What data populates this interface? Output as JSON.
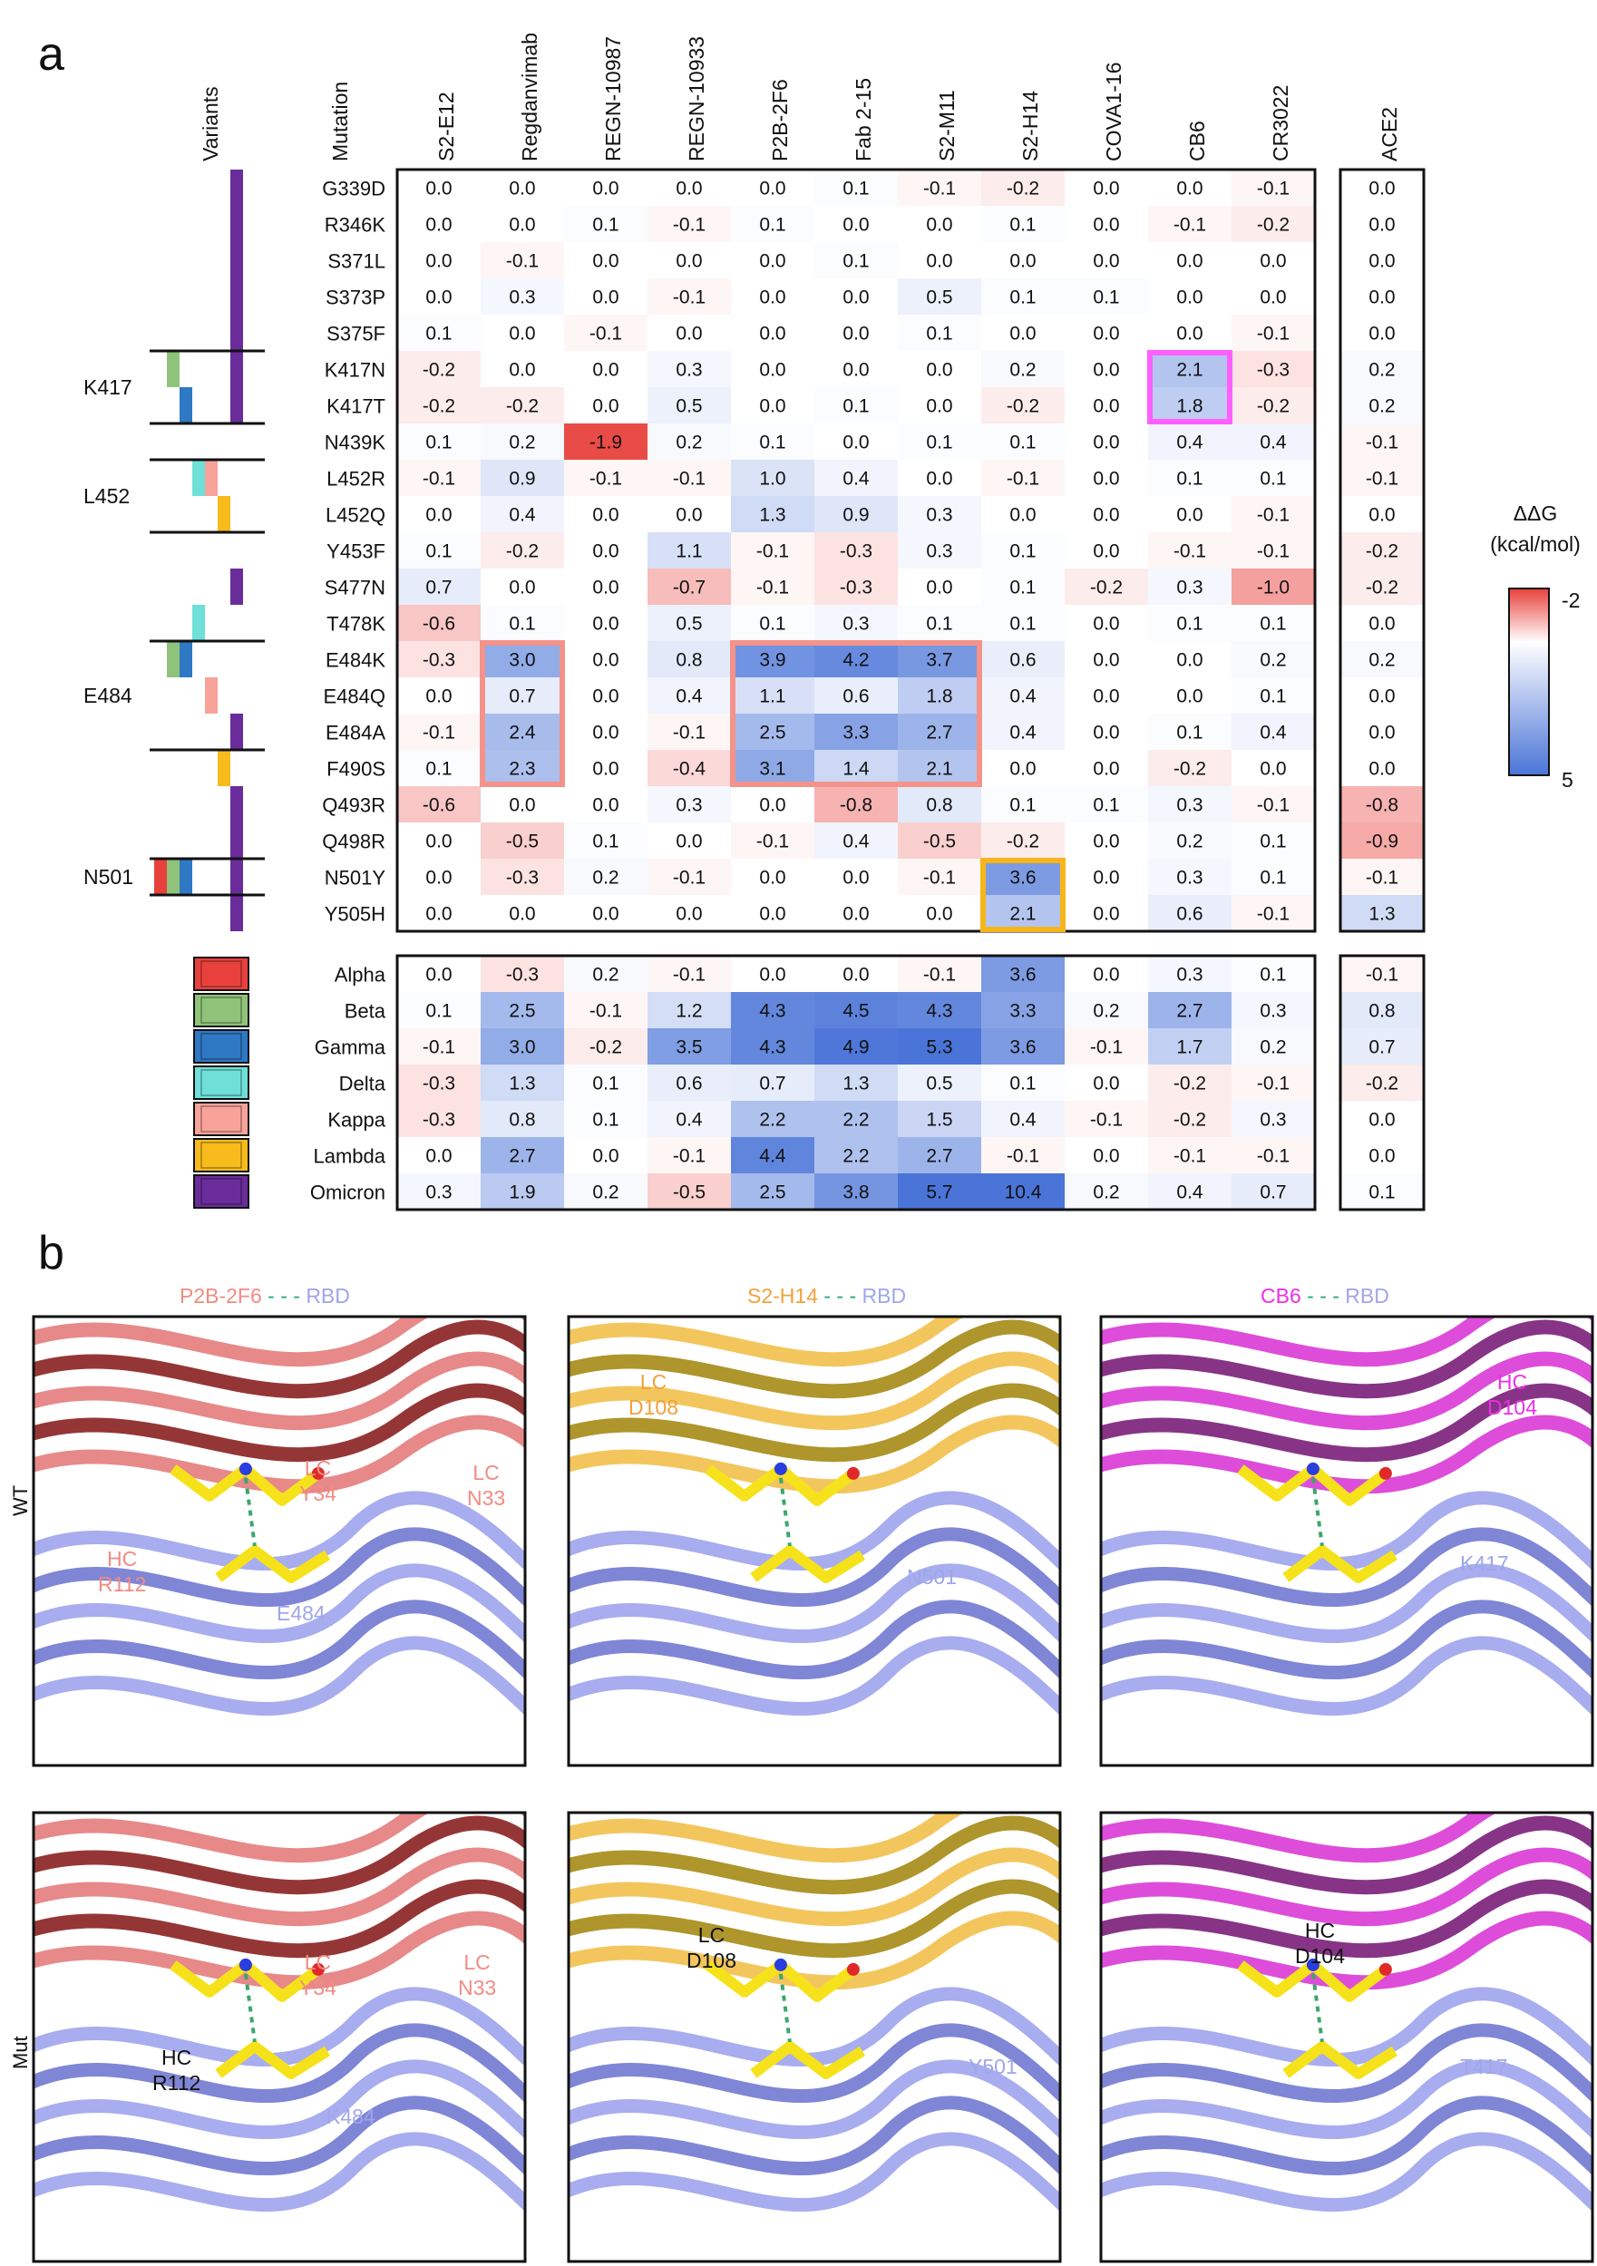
{
  "panel_a": {
    "letter": "a",
    "variants_header": "Variants",
    "mutation_header": "Mutation",
    "antibodies": [
      "S2-E12",
      "Regdanvimab",
      "REGN-10987",
      "REGN-10933",
      "P2B-2F6",
      "Fab 2-15",
      "S2-M11",
      "S2-H14",
      "COVA1-16",
      "CB6",
      "CR3022"
    ],
    "receptor": "ACE2",
    "mutations": [
      {
        "name": "G339D",
        "values": [
          0.0,
          0.0,
          0.0,
          0.0,
          0.0,
          0.1,
          -0.1,
          -0.2,
          0.0,
          0.0,
          -0.1
        ],
        "ace2": 0.0
      },
      {
        "name": "R346K",
        "values": [
          0.0,
          0.0,
          0.1,
          -0.1,
          0.1,
          0.0,
          0.0,
          0.1,
          0.0,
          -0.1,
          -0.2
        ],
        "ace2": 0.0
      },
      {
        "name": "S371L",
        "values": [
          0.0,
          -0.1,
          0.0,
          0.0,
          0.0,
          0.1,
          0.0,
          0.0,
          0.0,
          0.0,
          0.0
        ],
        "ace2": 0.0
      },
      {
        "name": "S373P",
        "values": [
          0.0,
          0.3,
          0.0,
          -0.1,
          0.0,
          0.0,
          0.5,
          0.1,
          0.1,
          0.0,
          0.0
        ],
        "ace2": 0.0
      },
      {
        "name": "S375F",
        "values": [
          0.1,
          0.0,
          -0.1,
          0.0,
          0.0,
          0.0,
          0.1,
          0.0,
          0.0,
          0.0,
          -0.1
        ],
        "ace2": 0.0
      },
      {
        "name": "K417N",
        "values": [
          -0.2,
          0.0,
          0.0,
          0.3,
          0.0,
          0.0,
          0.0,
          0.2,
          0.0,
          2.1,
          -0.3
        ],
        "ace2": 0.2
      },
      {
        "name": "K417T",
        "values": [
          -0.2,
          -0.2,
          0.0,
          0.5,
          0.0,
          0.1,
          0.0,
          -0.2,
          0.0,
          1.8,
          -0.2
        ],
        "ace2": 0.2
      },
      {
        "name": "N439K",
        "values": [
          0.1,
          0.2,
          -1.9,
          0.2,
          0.1,
          0.0,
          0.1,
          0.1,
          0.0,
          0.4,
          0.4
        ],
        "ace2": -0.1
      },
      {
        "name": "L452R",
        "values": [
          -0.1,
          0.9,
          -0.1,
          -0.1,
          1.0,
          0.4,
          0.0,
          -0.1,
          0.0,
          0.1,
          0.1
        ],
        "ace2": -0.1
      },
      {
        "name": "L452Q",
        "values": [
          0.0,
          0.4,
          0.0,
          0.0,
          1.3,
          0.9,
          0.3,
          0.0,
          0.0,
          0.0,
          -0.1
        ],
        "ace2": 0.0
      },
      {
        "name": "Y453F",
        "values": [
          0.1,
          -0.2,
          0.0,
          1.1,
          -0.1,
          -0.3,
          0.3,
          0.1,
          0.0,
          -0.1,
          -0.1
        ],
        "ace2": -0.2
      },
      {
        "name": "S477N",
        "values": [
          0.7,
          0.0,
          0.0,
          -0.7,
          -0.1,
          -0.3,
          0.0,
          0.1,
          -0.2,
          0.3,
          -1.0
        ],
        "ace2": -0.2
      },
      {
        "name": "T478K",
        "values": [
          -0.6,
          0.1,
          0.0,
          0.5,
          0.1,
          0.3,
          0.1,
          0.1,
          0.0,
          0.1,
          0.1
        ],
        "ace2": 0.0
      },
      {
        "name": "E484K",
        "values": [
          -0.3,
          3.0,
          0.0,
          0.8,
          3.9,
          4.2,
          3.7,
          0.6,
          0.0,
          0.0,
          0.2
        ],
        "ace2": 0.2
      },
      {
        "name": "E484Q",
        "values": [
          0.0,
          0.7,
          0.0,
          0.4,
          1.1,
          0.6,
          1.8,
          0.4,
          0.0,
          0.0,
          0.1
        ],
        "ace2": 0.0
      },
      {
        "name": "E484A",
        "values": [
          -0.1,
          2.4,
          0.0,
          -0.1,
          2.5,
          3.3,
          2.7,
          0.4,
          0.0,
          0.1,
          0.4
        ],
        "ace2": 0.0
      },
      {
        "name": "F490S",
        "values": [
          0.1,
          2.3,
          0.0,
          -0.4,
          3.1,
          1.4,
          2.1,
          0.0,
          0.0,
          -0.2,
          0.0
        ],
        "ace2": 0.0
      },
      {
        "name": "Q493R",
        "values": [
          -0.6,
          0.0,
          0.0,
          0.3,
          0.0,
          -0.8,
          0.8,
          0.1,
          0.1,
          0.3,
          -0.1
        ],
        "ace2": -0.8
      },
      {
        "name": "Q498R",
        "values": [
          0.0,
          -0.5,
          0.1,
          0.0,
          -0.1,
          0.4,
          -0.5,
          -0.2,
          0.0,
          0.2,
          0.1
        ],
        "ace2": -0.9
      },
      {
        "name": "N501Y",
        "values": [
          0.0,
          -0.3,
          0.2,
          -0.1,
          0.0,
          0.0,
          -0.1,
          3.6,
          0.0,
          0.3,
          0.1
        ],
        "ace2": -0.1
      },
      {
        "name": "Y505H",
        "values": [
          0.0,
          0.0,
          0.0,
          0.0,
          0.0,
          0.0,
          0.0,
          2.1,
          0.0,
          0.6,
          -0.1
        ],
        "ace2": 1.3
      }
    ],
    "variants": [
      {
        "name": "Alpha",
        "color": "#e8413c",
        "values": [
          0.0,
          -0.3,
          0.2,
          -0.1,
          0.0,
          0.0,
          -0.1,
          3.6,
          0.0,
          0.3,
          0.1
        ],
        "ace2": -0.1
      },
      {
        "name": "Beta",
        "color": "#8fc379",
        "values": [
          0.1,
          2.5,
          -0.1,
          1.2,
          4.3,
          4.5,
          4.3,
          3.3,
          0.2,
          2.7,
          0.3
        ],
        "ace2": 0.8
      },
      {
        "name": "Gamma",
        "color": "#2f78c4",
        "values": [
          -0.1,
          3.0,
          -0.2,
          3.5,
          4.3,
          4.9,
          5.3,
          3.6,
          -0.1,
          1.7,
          0.2
        ],
        "ace2": 0.7
      },
      {
        "name": "Delta",
        "color": "#6ee0d8",
        "values": [
          -0.3,
          1.3,
          0.1,
          0.6,
          0.7,
          1.3,
          0.5,
          0.1,
          0.0,
          -0.2,
          -0.1
        ],
        "ace2": -0.2
      },
      {
        "name": "Kappa",
        "color": "#f7a39a",
        "values": [
          -0.3,
          0.8,
          0.1,
          0.4,
          2.2,
          2.2,
          1.5,
          0.4,
          -0.1,
          -0.2,
          0.3
        ],
        "ace2": 0.0
      },
      {
        "name": "Lambda",
        "color": "#f7bb1c",
        "values": [
          0.0,
          2.7,
          0.0,
          -0.1,
          4.4,
          2.2,
          2.7,
          -0.1,
          0.0,
          -0.1,
          -0.1
        ],
        "ace2": 0.0
      },
      {
        "name": "Omicron",
        "color": "#6a2c9a",
        "values": [
          0.3,
          1.9,
          0.2,
          -0.5,
          2.5,
          3.8,
          5.7,
          10.4,
          0.2,
          0.4,
          0.7
        ],
        "ace2": 0.1
      }
    ],
    "site_labels": [
      "K417",
      "L452",
      "E484",
      "N501"
    ],
    "colorbar": {
      "title_line1": "ΔΔG",
      "title_line2": "(kcal/mol)",
      "min_label": "-2",
      "max_label": "5",
      "low_color": "#e8413c",
      "mid_color": "#ffffff",
      "high_color": "#4a74d8"
    },
    "highlights": [
      {
        "color": "#ff5fff",
        "rows": [
          "K417N",
          "K417T"
        ],
        "cols": [
          "CB6"
        ]
      },
      {
        "color": "#f4938a",
        "rows": [
          "E484K",
          "E484Q",
          "E484A",
          "F490S"
        ],
        "cols": [
          "Regdanvimab"
        ]
      },
      {
        "color": "#f4938a",
        "rows": [
          "E484K",
          "E484Q",
          "E484A",
          "F490S"
        ],
        "cols": [
          "P2B-2F6",
          "Fab 2-15",
          "S2-M11"
        ]
      },
      {
        "color": "#f7b51c",
        "rows": [
          "N501Y",
          "Y505H"
        ],
        "cols": [
          "S2-H14"
        ]
      }
    ]
  },
  "panel_b": {
    "letter": "b",
    "row_labels": [
      "WT",
      "Mut"
    ],
    "columns": [
      {
        "antibody": "P2B-2F6",
        "antibody_color": "#f28b82",
        "sep": "- - -",
        "target": "RBD",
        "target_color": "#9fa6ea",
        "wt_labels": [
          {
            "text": "LC\nY34",
            "color": "#f28b82"
          },
          {
            "text": "LC\nN33",
            "color": "#f28b82"
          },
          {
            "text": "HC\nR112",
            "color": "#f28b82"
          },
          {
            "text": "E484",
            "color": "#9fa6ea"
          }
        ],
        "mut_labels": [
          {
            "text": "LC\nY34",
            "color": "#f28b82"
          },
          {
            "text": "LC\nN33",
            "color": "#f28b82"
          },
          {
            "text": "HC\nR112",
            "color": "#111111"
          },
          {
            "text": "K484",
            "color": "#9fa6ea"
          }
        ]
      },
      {
        "antibody": "S2-H14",
        "antibody_color": "#f2a13a",
        "sep": "- - -",
        "target": "RBD",
        "target_color": "#9fa6ea",
        "wt_labels": [
          {
            "text": "LC\nD108",
            "color": "#f2a13a"
          },
          {
            "text": "N501",
            "color": "#9fa6ea"
          }
        ],
        "mut_labels": [
          {
            "text": "LC\nD108",
            "color": "#111111"
          },
          {
            "text": "Y501",
            "color": "#9fa6ea"
          }
        ]
      },
      {
        "antibody": "CB6",
        "antibody_color": "#ee2ee8",
        "sep": "- - -",
        "target": "RBD",
        "target_color": "#9fa6ea",
        "wt_labels": [
          {
            "text": "HC\nD104",
            "color": "#ee2ee8"
          },
          {
            "text": "K417",
            "color": "#9fa6ea"
          }
        ],
        "mut_labels": [
          {
            "text": "HC\nD104",
            "color": "#111111"
          },
          {
            "text": "T417",
            "color": "#9fa6ea"
          }
        ]
      }
    ]
  }
}
